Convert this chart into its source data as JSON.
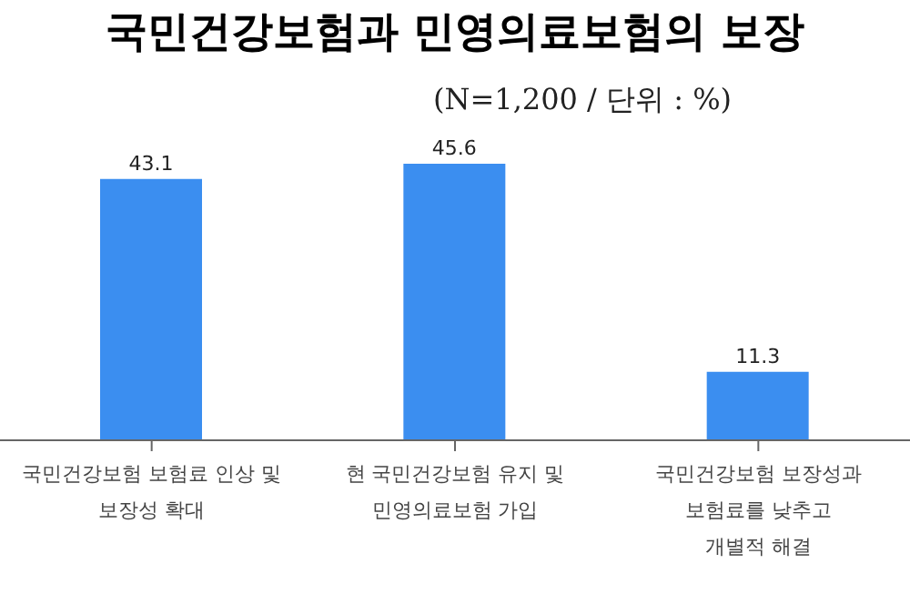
{
  "chart_data": {
    "type": "bar",
    "title": "국민건강보험과 민영의료보험의 보장",
    "subtitle": "(N=1,200 / 단위 : %)",
    "categories": [
      "국민건강보험 보험료 인상 및\n보장성 확대",
      "현 국민건강보험 유지 및\n민영의료보험 가입",
      "국민건강보험 보장성과\n보험료를 낮추고\n개별적 해결"
    ],
    "values": [
      43.1,
      45.6,
      11.3
    ],
    "color": "#3b8ef0",
    "data_labels": true
  }
}
